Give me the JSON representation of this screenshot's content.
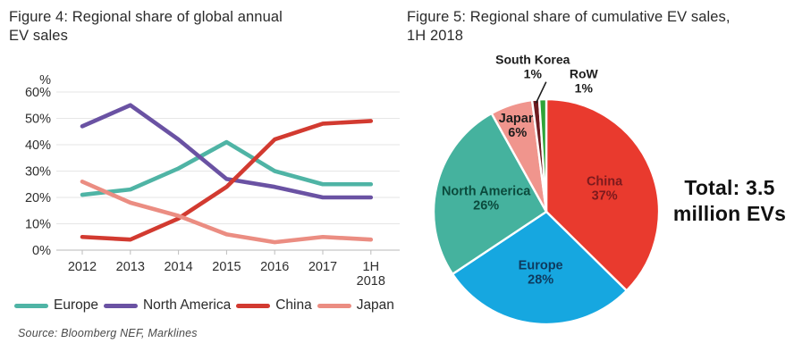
{
  "figure4": {
    "title": "Figure 4: Regional share of global annual\nEV sales",
    "source": "Source: Bloomberg NEF, Marklines"
  },
  "figure5": {
    "title": "Figure 5: Regional share of cumulative EV sales,\n1H 2018",
    "total": "Total: 3.5\nmillion EVs"
  },
  "chart_data": [
    {
      "type": "line",
      "title": "Figure 4: Regional share of global annual EV sales",
      "categories": [
        "2012",
        "2013",
        "2014",
        "2015",
        "2016",
        "2017",
        "1H 2018"
      ],
      "series": [
        {
          "name": "Europe",
          "color": "#4fb4a5",
          "values": [
            21,
            23,
            31,
            41,
            30,
            25,
            25
          ]
        },
        {
          "name": "North America",
          "color": "#6a52a3",
          "values": [
            47,
            55,
            42,
            27,
            24,
            20,
            20
          ]
        },
        {
          "name": "China",
          "color": "#d23a30",
          "values": [
            5,
            4,
            12,
            24,
            42,
            48,
            49
          ]
        },
        {
          "name": "Japan",
          "color": "#eb8d82",
          "values": [
            26,
            18,
            13,
            6,
            3,
            5,
            4
          ]
        }
      ],
      "ylabel": "%",
      "ylim": [
        0,
        60
      ],
      "ytick_step": 10,
      "yticklabels": [
        "0%",
        "10%",
        "20%",
        "30%",
        "40%",
        "50%",
        "60%"
      ],
      "grid": true,
      "legend_position": "bottom",
      "source": "Source: Bloomberg NEF, Marklines"
    },
    {
      "type": "pie",
      "title": "Figure 5: Regional share of cumulative EV sales, 1H 2018",
      "annotation": "Total: 3.5 million EVs",
      "slices": [
        {
          "label": "China",
          "value": 37,
          "color": "#e93a2e",
          "label_color": "#7c1a1d",
          "label_r": 0.56
        },
        {
          "label": "Europe",
          "value": 28,
          "color": "#16a7e0",
          "label_color": "#0e3a5e",
          "label_r": 0.53
        },
        {
          "label": "North America",
          "value": 26,
          "color": "#45b29e",
          "label_color": "#0b4a3c",
          "label_r": 0.55
        },
        {
          "label": "Japan",
          "value": 6,
          "color": "#f0958d",
          "label_color": "#1c1c1c",
          "label_r": 0.82
        },
        {
          "label": "South Korea",
          "value": 1,
          "color": "#6e1b20",
          "label_color": "#1c1c1c",
          "outside": true,
          "leader": true
        },
        {
          "label": "RoW",
          "value": 1,
          "color": "#2fa338",
          "label_color": "#1c1c1c",
          "outside": true
        }
      ]
    }
  ]
}
